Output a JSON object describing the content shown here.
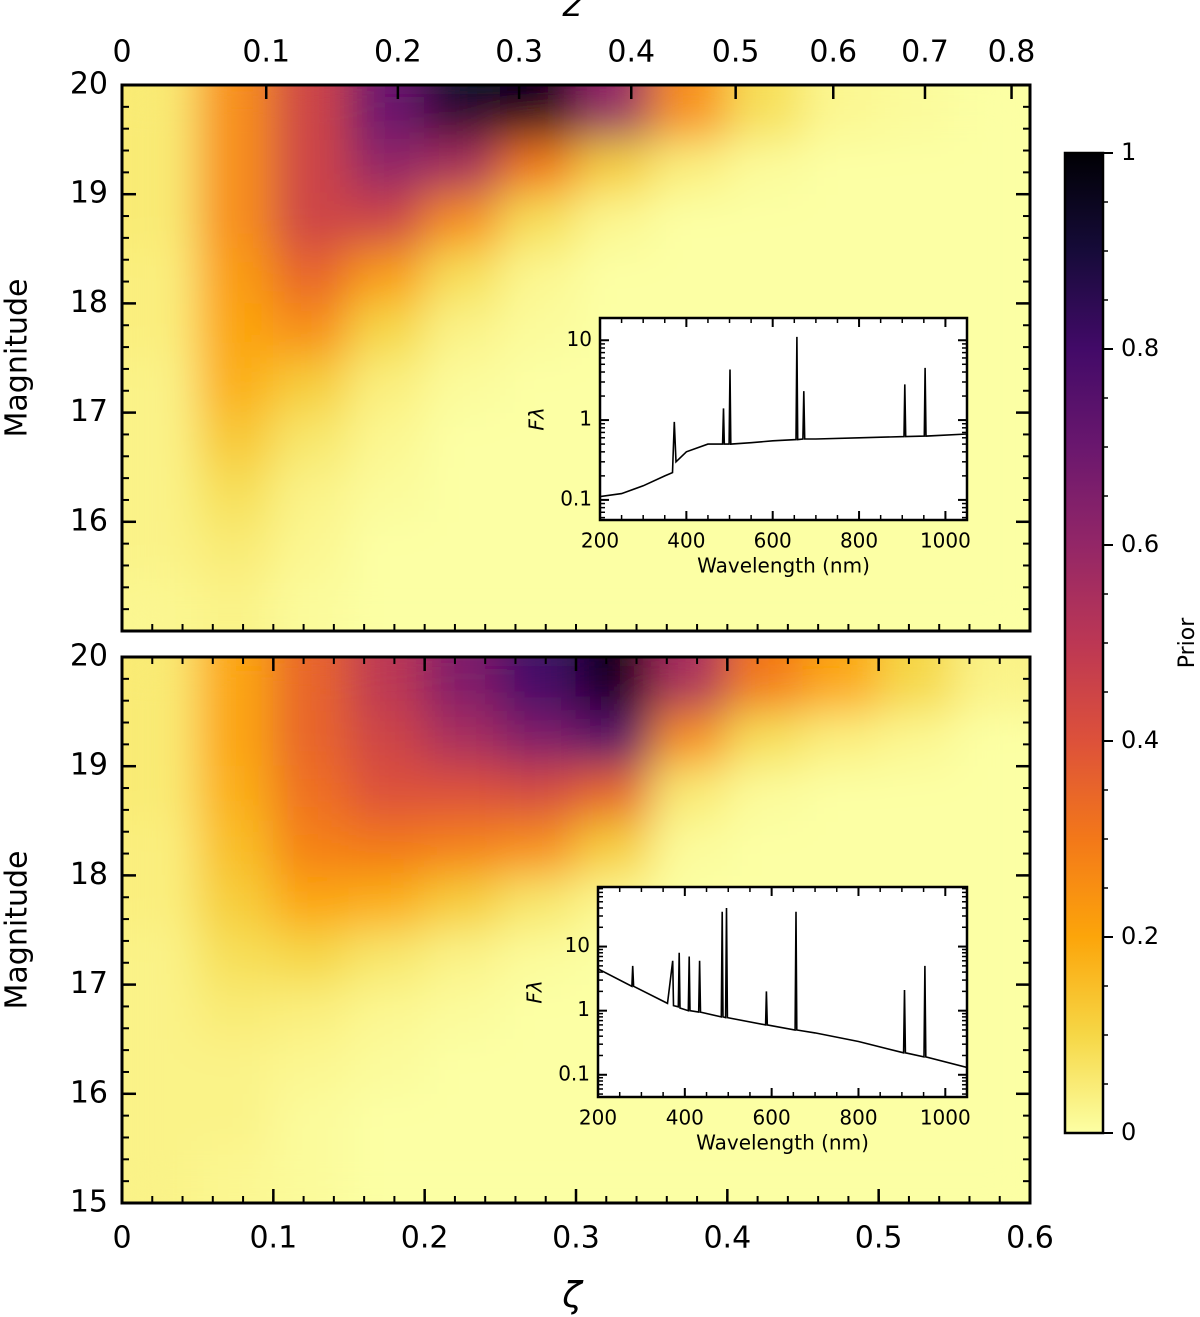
{
  "chart_data": [
    {
      "type": "heatmap",
      "colormap": "inferno_r",
      "ylabel": "Magnitude",
      "x2label": "z",
      "xlim": [
        0,
        0.6
      ],
      "ylim": [
        15,
        20
      ],
      "yticks": [
        16,
        17,
        18,
        19,
        20
      ],
      "x2ticks": [
        0,
        {
          "value": 0.0953,
          "label": "0.1"
        },
        {
          "value": 0.1823,
          "label": "0.2"
        },
        {
          "value": 0.2624,
          "label": "0.3"
        },
        {
          "value": 0.3365,
          "label": "0.4"
        },
        {
          "value": 0.4055,
          "label": "0.5"
        },
        {
          "value": 0.47,
          "label": "0.6"
        },
        {
          "value": 0.5306,
          "label": "0.7"
        },
        {
          "value": 0.5878,
          "label": "0.8"
        }
      ],
      "x": [
        0.025,
        0.075,
        0.125,
        0.175,
        0.225,
        0.275,
        0.325,
        0.375,
        0.425,
        0.475,
        0.525,
        0.575
      ],
      "y": [
        19.75,
        19.25,
        18.75,
        18.25,
        17.75,
        17.25,
        16.75,
        16.25,
        15.75,
        15.25
      ],
      "z": [
        [
          0.05,
          0.25,
          0.45,
          0.7,
          0.92,
          0.95,
          0.6,
          0.25,
          0.08,
          0.02,
          0.01,
          0
        ],
        [
          0.05,
          0.25,
          0.45,
          0.6,
          0.55,
          0.3,
          0.12,
          0.04,
          0.01,
          0,
          0,
          0
        ],
        [
          0.05,
          0.25,
          0.45,
          0.45,
          0.25,
          0.08,
          0.02,
          0,
          0,
          0,
          0,
          0
        ],
        [
          0.04,
          0.22,
          0.35,
          0.22,
          0.08,
          0.02,
          0,
          0,
          0,
          0,
          0,
          0
        ],
        [
          0.04,
          0.2,
          0.25,
          0.1,
          0.03,
          0.01,
          0,
          0,
          0,
          0,
          0,
          0
        ],
        [
          0.03,
          0.18,
          0.12,
          0.04,
          0.01,
          0,
          0,
          0,
          0,
          0,
          0,
          0
        ],
        [
          0.03,
          0.13,
          0.06,
          0.02,
          0,
          0,
          0,
          0,
          0,
          0,
          0,
          0
        ],
        [
          0.03,
          0.08,
          0.03,
          0.01,
          0,
          0,
          0,
          0,
          0,
          0,
          0,
          0
        ],
        [
          0.03,
          0.05,
          0.02,
          0,
          0,
          0,
          0,
          0,
          0,
          0,
          0,
          0
        ],
        [
          0.02,
          0.03,
          0.01,
          0,
          0,
          0,
          0,
          0,
          0,
          0,
          0,
          0
        ]
      ]
    },
    {
      "type": "heatmap",
      "colormap": "inferno_r",
      "ylabel": "Magnitude",
      "xlabel": "ζ",
      "xlim": [
        0,
        0.6
      ],
      "ylim": [
        15,
        20
      ],
      "yticks": [
        15,
        16,
        17,
        18,
        19,
        20
      ],
      "xticks": [
        0,
        0.1,
        0.2,
        0.3,
        0.4,
        0.5,
        0.6
      ],
      "x": [
        0.025,
        0.075,
        0.125,
        0.175,
        0.225,
        0.275,
        0.325,
        0.375,
        0.425,
        0.475,
        0.525,
        0.575
      ],
      "y": [
        19.75,
        19.25,
        18.75,
        18.25,
        17.75,
        17.25,
        16.75,
        16.25,
        15.75,
        15.25
      ],
      "z": [
        [
          0.05,
          0.2,
          0.35,
          0.5,
          0.65,
          0.8,
          0.95,
          0.55,
          0.3,
          0.2,
          0.1,
          0.03
        ],
        [
          0.05,
          0.2,
          0.35,
          0.45,
          0.55,
          0.65,
          0.75,
          0.25,
          0.08,
          0.04,
          0.02,
          0
        ],
        [
          0.05,
          0.18,
          0.32,
          0.4,
          0.4,
          0.42,
          0.35,
          0.05,
          0.01,
          0,
          0,
          0
        ],
        [
          0.04,
          0.15,
          0.28,
          0.3,
          0.28,
          0.25,
          0.12,
          0.01,
          0,
          0,
          0,
          0
        ],
        [
          0.04,
          0.12,
          0.2,
          0.18,
          0.12,
          0.06,
          0.02,
          0,
          0,
          0,
          0,
          0
        ],
        [
          0.03,
          0.08,
          0.1,
          0.06,
          0.03,
          0.01,
          0,
          0,
          0,
          0,
          0,
          0
        ],
        [
          0.03,
          0.05,
          0.04,
          0.02,
          0.01,
          0,
          0,
          0,
          0,
          0,
          0,
          0
        ],
        [
          0.03,
          0.03,
          0.02,
          0.01,
          0,
          0,
          0,
          0,
          0,
          0,
          0,
          0
        ],
        [
          0.03,
          0.03,
          0.01,
          0,
          0,
          0,
          0,
          0,
          0,
          0,
          0,
          0
        ],
        [
          0.03,
          0.02,
          0.01,
          0,
          0,
          0,
          0,
          0,
          0,
          0,
          0,
          0
        ]
      ]
    },
    {
      "type": "line",
      "xlabel": "Wavelength (nm)",
      "ylabel": "Fλ",
      "yscale": "log",
      "color": "#000000",
      "xlim": [
        200,
        1050
      ],
      "ylim": [
        0.056,
        19
      ],
      "xticks": [
        200,
        400,
        600,
        800,
        1000
      ],
      "yticks": [
        0.1,
        1,
        10
      ],
      "x": [
        200,
        250,
        300,
        350,
        368,
        372,
        376,
        400,
        450,
        484,
        486,
        488,
        499,
        501,
        503,
        550,
        600,
        654,
        656,
        658,
        670,
        672,
        674,
        700,
        800,
        904,
        906,
        908,
        951,
        953,
        955,
        1050
      ],
      "values": [
        0.11,
        0.12,
        0.15,
        0.2,
        0.22,
        0.95,
        0.3,
        0.4,
        0.5,
        0.5,
        1.4,
        0.5,
        0.5,
        4.3,
        0.5,
        0.52,
        0.55,
        0.57,
        11,
        0.57,
        0.58,
        2.3,
        0.58,
        0.58,
        0.6,
        0.62,
        2.8,
        0.62,
        0.63,
        4.5,
        0.63,
        0.67
      ]
    },
    {
      "type": "line",
      "xlabel": "Wavelength (nm)",
      "ylabel": "Fλ",
      "yscale": "log",
      "color": "#000000",
      "xlim": [
        200,
        1050
      ],
      "ylim": [
        0.045,
        85
      ],
      "xticks": [
        200,
        400,
        600,
        800,
        1000
      ],
      "yticks": [
        0.1,
        1,
        10
      ],
      "x": [
        200,
        278,
        280,
        282,
        360,
        372,
        374,
        385,
        387,
        389,
        408,
        410,
        412,
        432,
        434,
        436,
        484,
        486,
        488,
        494,
        496,
        498,
        586,
        588,
        590,
        654,
        656,
        658,
        700,
        800,
        904,
        906,
        908,
        951,
        953,
        955,
        1050
      ],
      "values": [
        4.5,
        2.4,
        5,
        2.4,
        1.3,
        6,
        1.2,
        1.15,
        8,
        1.1,
        1.0,
        7,
        1.0,
        0.95,
        6,
        0.95,
        0.8,
        35,
        0.8,
        0.78,
        40,
        0.78,
        0.6,
        2,
        0.6,
        0.5,
        35,
        0.5,
        0.45,
        0.33,
        0.22,
        2.1,
        0.22,
        0.19,
        5,
        0.19,
        0.13
      ]
    },
    {
      "type": "colorbar",
      "colormap": "inferno_r",
      "label": "Prior",
      "lim": [
        0,
        1
      ],
      "ticks": [
        0,
        0.2,
        0.4,
        0.6,
        0.8,
        1
      ]
    }
  ]
}
